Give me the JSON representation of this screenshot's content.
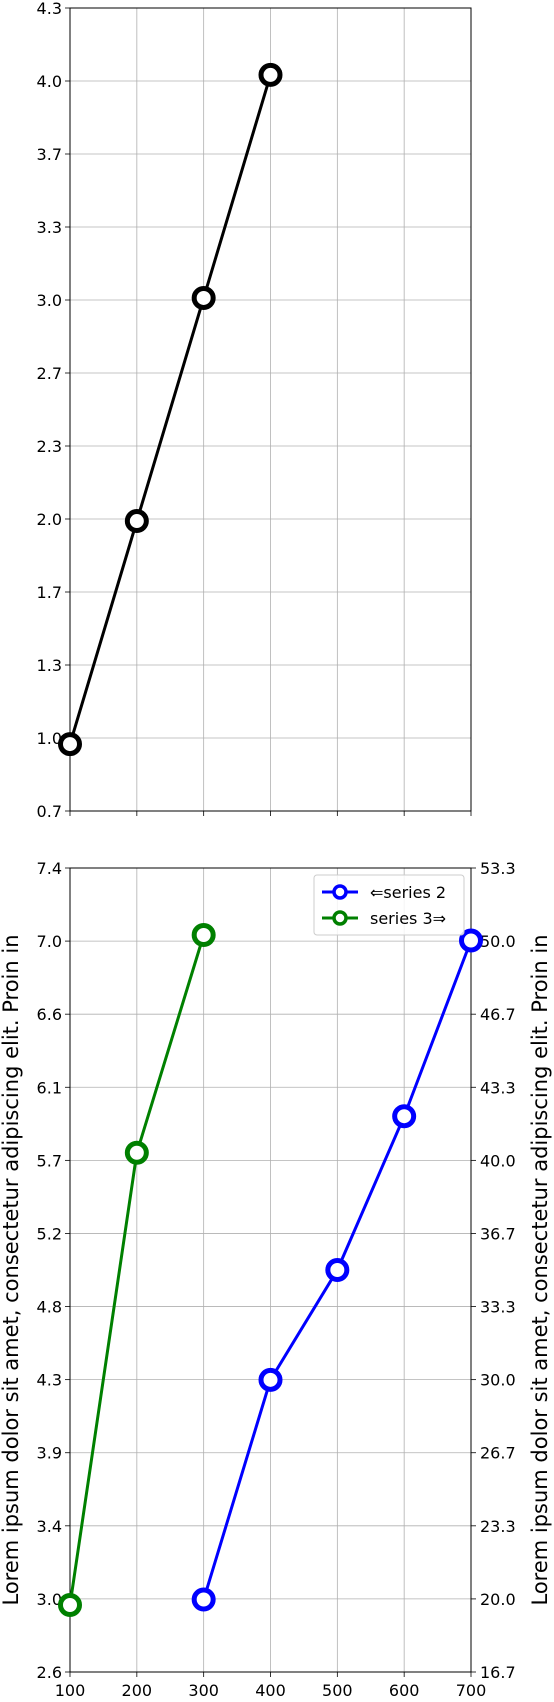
{
  "chart_data": [
    {
      "type": "line",
      "x": [
        100,
        200,
        300,
        400
      ],
      "series": [
        {
          "values": [
            1,
            2,
            3,
            4
          ],
          "color": "#000000",
          "marker": "open-circle"
        }
      ],
      "xlim": [
        100,
        700
      ],
      "ylim": [
        0.7,
        4.3
      ],
      "yticks": [
        "0.7",
        "1.0",
        "1.3",
        "1.7",
        "2.0",
        "2.3",
        "2.7",
        "3.0",
        "3.3",
        "3.7",
        "4.0",
        "4.3"
      ],
      "xticks_shown": false,
      "grid": true
    },
    {
      "type": "line",
      "xlim": [
        100,
        700
      ],
      "xticks": [
        "100",
        "200",
        "300",
        "400",
        "500",
        "600",
        "700"
      ],
      "grid": true,
      "legend_position": "top-right",
      "left_axis": {
        "label": "Lorem ipsum dolor sit amet, consectetur adipiscing elit. Proin in",
        "ylim": [
          2.6,
          7.4
        ],
        "ticks": [
          "2.6",
          "3.0",
          "3.4",
          "3.9",
          "4.3",
          "4.8",
          "5.2",
          "5.7",
          "6.1",
          "6.6",
          "7.0",
          "7.4"
        ]
      },
      "right_axis": {
        "label": "Lorem ipsum dolor sit amet, consectetur adipiscing elit. Proin in",
        "ylim": [
          16.7,
          53.3
        ],
        "ticks": [
          "16.7",
          "20.0",
          "23.3",
          "26.7",
          "30.0",
          "33.3",
          "36.7",
          "40.0",
          "43.3",
          "46.7",
          "50.0",
          "53.3"
        ]
      },
      "series": [
        {
          "name": "⇐series 2",
          "axis": "right",
          "x": [
            300,
            400,
            500,
            600,
            700
          ],
          "values": [
            20,
            30,
            35,
            42,
            50
          ],
          "color": "#0000ff",
          "marker": "open-circle"
        },
        {
          "name": "series 3⇒",
          "axis": "left",
          "x": [
            100,
            200,
            300
          ],
          "values": [
            3,
            5.7,
            7
          ],
          "color": "#008000",
          "marker": "open-circle"
        }
      ]
    }
  ]
}
